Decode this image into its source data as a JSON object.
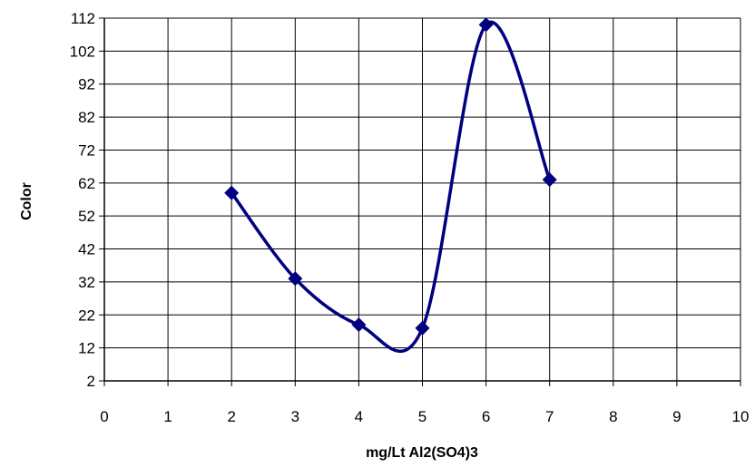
{
  "chart_data": {
    "type": "scatter",
    "title": "",
    "xlabel": "mg/Lt Al2(SO4)3",
    "ylabel": "Color",
    "xlim": [
      0,
      10
    ],
    "ylim": [
      2,
      112
    ],
    "xticks": [
      "0",
      "1",
      "2",
      "3",
      "4",
      "5",
      "6",
      "7",
      "8",
      "9",
      "10"
    ],
    "yticks": [
      "2",
      "12",
      "22",
      "32",
      "42",
      "52",
      "62",
      "72",
      "82",
      "92",
      "102",
      "112"
    ],
    "grid": true,
    "legend": "none",
    "smooth_line": true,
    "series": [
      {
        "x": [
          2,
          3,
          4,
          5,
          6,
          7
        ],
        "y": [
          59,
          33,
          19,
          18,
          110,
          63
        ],
        "color": "#000080",
        "marker": "diamond"
      }
    ]
  }
}
